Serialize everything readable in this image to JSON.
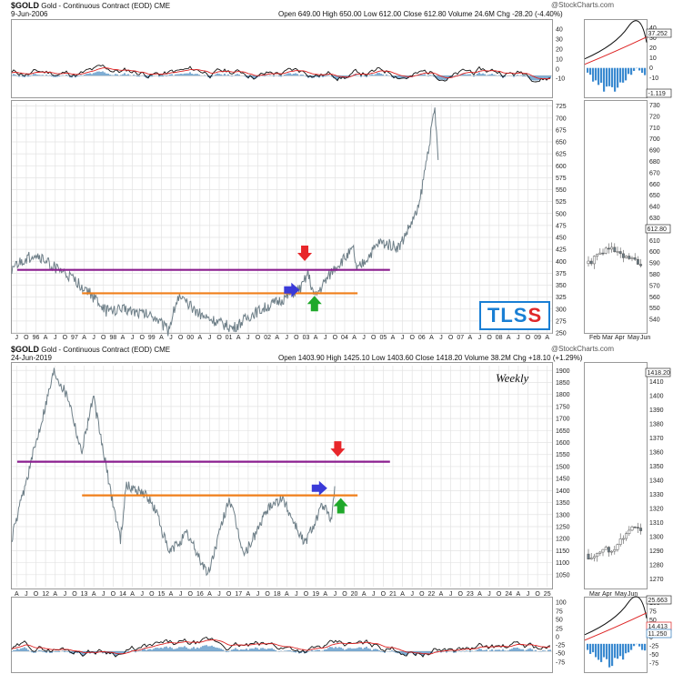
{
  "top_chart": {
    "symbol": "$GOLD",
    "name": "Gold - Continuous Contract (EOD)",
    "exchange": "CME",
    "date": "9-Jun-2006",
    "quote": "Open 649.00  High 650.00  Low 612.00  Close 612.80  Volume 24.6M  Chg -28.20 (-4.40%)",
    "watermark": "@StockCharts.com",
    "badge": {
      "letters": [
        "T",
        "L",
        "S",
        "S"
      ],
      "colors": [
        "#1a7fd4",
        "#1a7fd4",
        "#1a7fd4",
        "#e0282a"
      ]
    },
    "x_labels": [
      "J",
      "O",
      "96",
      "A",
      "J",
      "O",
      "97",
      "A",
      "J",
      "O",
      "98",
      "A",
      "J",
      "O",
      "99",
      "A",
      "J",
      "O",
      "00",
      "A",
      "J",
      "O",
      "01",
      "A",
      "J",
      "O",
      "02",
      "A",
      "J",
      "O",
      "03",
      "A",
      "J",
      "O",
      "04",
      "A",
      "J",
      "O",
      "05",
      "A",
      "J",
      "O",
      "06",
      "A",
      "J",
      "O",
      "07",
      "A",
      "J",
      "O",
      "08",
      "A",
      "J",
      "O",
      "09",
      "A"
    ],
    "inset_x_labels": [
      "Feb",
      "Mar",
      "Apr",
      "May",
      "Jun"
    ],
    "indicator_label": "37.252",
    "inset_indicator_label": "-1.119",
    "price_label": "612.80"
  },
  "bottom_chart": {
    "symbol": "$GOLD",
    "name": "Gold - Continuous Contract (EOD)",
    "exchange": "CME",
    "date": "24-Jun-2019",
    "quote": "Open 1403.90  High 1425.10  Low 1403.60  Close 1418.20  Volume 38.2M  Chg +18.10 (+1.29%)",
    "watermark": "@StockCharts.com",
    "annotation": "Weekly",
    "x_labels": [
      "A",
      "J",
      "O",
      "12",
      "A",
      "J",
      "O",
      "13",
      "A",
      "J",
      "O",
      "14",
      "A",
      "J",
      "O",
      "15",
      "A",
      "J",
      "O",
      "16",
      "A",
      "J",
      "O",
      "17",
      "A",
      "J",
      "O",
      "18",
      "A",
      "J",
      "O",
      "19",
      "A",
      "J",
      "O",
      "20",
      "A",
      "J",
      "O",
      "21",
      "A",
      "J",
      "O",
      "22",
      "A",
      "J",
      "O",
      "23",
      "A",
      "J",
      "O",
      "24",
      "A",
      "J",
      "O",
      "25"
    ],
    "inset_x_labels": [
      "Mar",
      "Apr",
      "May",
      "Jun"
    ],
    "price_label": "1418.20",
    "indicator_label_1": "25.663",
    "indicator_label_2": "14.413",
    "indicator_label_3": "11.250"
  },
  "chart_data": [
    {
      "type": "line",
      "title": "$GOLD Gold - Continuous Contract (EOD) CME",
      "x_range": [
        "1995-07",
        "2009-05"
      ],
      "ylim": [
        250,
        730
      ],
      "y_ticks": [
        250,
        275,
        300,
        325,
        350,
        375,
        400,
        425,
        450,
        475,
        500,
        525,
        550,
        575,
        600,
        625,
        650,
        675,
        700,
        725
      ],
      "series": [
        {
          "x": [
            "1995-07",
            "1996-02",
            "1996-12",
            "1997-06",
            "1997-12",
            "1998-06",
            "1999-03",
            "1999-07",
            "1999-10",
            "2000-06",
            "2001-03",
            "2001-09",
            "2002-06",
            "2002-12",
            "2003-02",
            "2003-04",
            "2003-10",
            "2004-04",
            "2004-05",
            "2004-12",
            "2005-06",
            "2005-12",
            "2006-05",
            "2006-06"
          ],
          "values": [
            385,
            415,
            370,
            340,
            295,
            300,
            285,
            255,
            325,
            285,
            260,
            290,
            320,
            345,
            375,
            325,
            385,
            425,
            380,
            440,
            430,
            510,
            720,
            612
          ]
        }
      ],
      "lines": [
        {
          "color": "#8b1e8f",
          "y": 382
        },
        {
          "color": "#f07f1a",
          "y": 333
        }
      ],
      "annotations": [
        {
          "marker": "red-down-arrow",
          "x": "2003-01",
          "y": 410
        },
        {
          "marker": "blue-right-arrow",
          "x": "2002-10",
          "y": 340
        },
        {
          "marker": "green-up-arrow",
          "x": "2003-04",
          "y": 318
        }
      ],
      "grid": true
    },
    {
      "type": "line",
      "title": "$GOLD Gold - Continuous Contract (EOD) CME",
      "x_range": [
        "2010-07",
        "2025-06"
      ],
      "ylim": [
        1000,
        1920
      ],
      "y_ticks": [
        1050,
        1100,
        1150,
        1200,
        1250,
        1300,
        1350,
        1400,
        1450,
        1500,
        1550,
        1600,
        1650,
        1700,
        1750,
        1800,
        1850,
        1900
      ],
      "series": [
        {
          "x": [
            "2010-07",
            "2011-09",
            "2012-02",
            "2012-06",
            "2012-10",
            "2013-04",
            "2013-07",
            "2013-09",
            "2014-03",
            "2014-07",
            "2014-11",
            "2015-05",
            "2015-12",
            "2016-07",
            "2016-12",
            "2017-09",
            "2018-01",
            "2018-08",
            "2019-02",
            "2019-05",
            "2019-06"
          ],
          "values": [
            1200,
            1900,
            1780,
            1560,
            1790,
            1380,
            1200,
            1420,
            1390,
            1310,
            1140,
            1220,
            1050,
            1370,
            1130,
            1350,
            1360,
            1180,
            1340,
            1270,
            1418
          ]
        }
      ],
      "lines": [
        {
          "color": "#8b1e8f",
          "y": 1520
        },
        {
          "color": "#f07f1a",
          "y": 1380
        }
      ],
      "annotations": [
        {
          "marker": "red-down-arrow",
          "x": "2019-07",
          "y": 1560
        },
        {
          "marker": "blue-right-arrow",
          "x": "2019-02",
          "y": 1410
        },
        {
          "marker": "green-up-arrow",
          "x": "2019-08",
          "y": 1350
        }
      ],
      "grid": true
    }
  ]
}
